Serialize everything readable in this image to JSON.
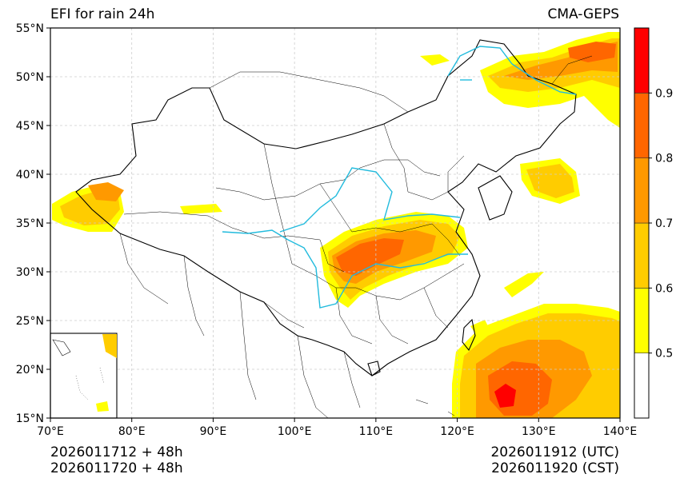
{
  "title_left": "EFI for rain 24h",
  "title_right": "CMA-GEPS",
  "footer": {
    "init_utc": "2026011712 + 48h",
    "init_cst": "2026011720 + 48h",
    "valid_utc": "2026011912 (UTC)",
    "valid_cst": "2026011920 (CST)"
  },
  "map": {
    "lon_labels": [
      "70°E",
      "80°E",
      "90°E",
      "100°E",
      "110°E",
      "120°E",
      "130°E",
      "140°E"
    ],
    "lat_labels": [
      "55°N",
      "50°N",
      "45°N",
      "40°N",
      "35°N",
      "30°N",
      "25°N",
      "20°N",
      "15°N"
    ],
    "lon_range": [
      70,
      140
    ],
    "lat_range": [
      15,
      55
    ]
  },
  "colorbar": {
    "levels": [
      "0.5",
      "0.6",
      "0.7",
      "0.8",
      "0.9"
    ],
    "colors": [
      "#ffffff",
      "#ffff00",
      "#ffcc00",
      "#ff9900",
      "#ff6600",
      "#ff0000"
    ]
  },
  "colors": {
    "river": "#22bbdd",
    "border": "#000000",
    "grid": "#cccccc"
  }
}
